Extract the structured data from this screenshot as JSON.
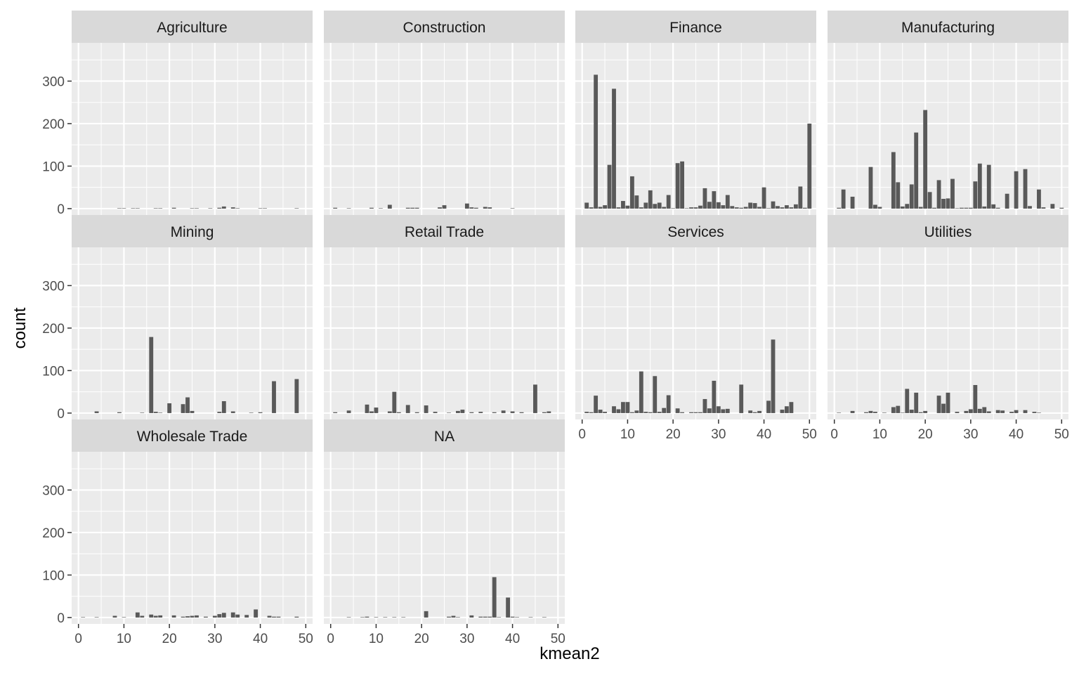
{
  "chart_data": {
    "type": "bar",
    "layout": "facet_wrap",
    "ncol": 4,
    "title": "",
    "xlabel": "kmean2",
    "ylabel": "count",
    "xlim": [
      -1.5,
      51.5
    ],
    "ylim": [
      -15,
      390
    ],
    "x_ticks": [
      0,
      10,
      20,
      30,
      40,
      50
    ],
    "y_ticks": [
      0,
      100,
      200,
      300
    ],
    "grid": true,
    "bar_color": "#595959",
    "panel_background": "#ebebeb",
    "strip_background": "#d9d9d9",
    "grid_color": "#ffffff",
    "axis_text_color": "#4d4d4d",
    "strip_text_color": "#1a1a1a",
    "panels": [
      {
        "name": "Agriculture",
        "points": [
          [
            9,
            1
          ],
          [
            10,
            1
          ],
          [
            12,
            1
          ],
          [
            13,
            1
          ],
          [
            17,
            1
          ],
          [
            18,
            1
          ],
          [
            21,
            2
          ],
          [
            25,
            1
          ],
          [
            26,
            1
          ],
          [
            29,
            1
          ],
          [
            31,
            2
          ],
          [
            32,
            5
          ],
          [
            34,
            3
          ],
          [
            35,
            1
          ],
          [
            40,
            1
          ],
          [
            41,
            1
          ],
          [
            48,
            1
          ]
        ]
      },
      {
        "name": "Construction",
        "points": [
          [
            1,
            2
          ],
          [
            4,
            1
          ],
          [
            9,
            2
          ],
          [
            11,
            1
          ],
          [
            13,
            9
          ],
          [
            17,
            2
          ],
          [
            18,
            2
          ],
          [
            19,
            2
          ],
          [
            24,
            3
          ],
          [
            25,
            8
          ],
          [
            30,
            12
          ],
          [
            31,
            3
          ],
          [
            32,
            2
          ],
          [
            34,
            4
          ],
          [
            35,
            3
          ],
          [
            40,
            1
          ]
        ]
      },
      {
        "name": "Finance",
        "points": [
          [
            1,
            14
          ],
          [
            2,
            3
          ],
          [
            3,
            315
          ],
          [
            4,
            4
          ],
          [
            5,
            8
          ],
          [
            6,
            103
          ],
          [
            7,
            282
          ],
          [
            8,
            3
          ],
          [
            9,
            18
          ],
          [
            10,
            7
          ],
          [
            11,
            76
          ],
          [
            12,
            31
          ],
          [
            13,
            3
          ],
          [
            14,
            14
          ],
          [
            15,
            43
          ],
          [
            16,
            11
          ],
          [
            17,
            14
          ],
          [
            18,
            4
          ],
          [
            19,
            32
          ],
          [
            20,
            1
          ],
          [
            21,
            107
          ],
          [
            22,
            111
          ],
          [
            23,
            1
          ],
          [
            24,
            3
          ],
          [
            25,
            3
          ],
          [
            26,
            7
          ],
          [
            27,
            48
          ],
          [
            28,
            16
          ],
          [
            29,
            41
          ],
          [
            30,
            15
          ],
          [
            31,
            8
          ],
          [
            32,
            32
          ],
          [
            33,
            6
          ],
          [
            34,
            3
          ],
          [
            35,
            2
          ],
          [
            36,
            4
          ],
          [
            37,
            14
          ],
          [
            38,
            13
          ],
          [
            39,
            4
          ],
          [
            40,
            50
          ],
          [
            41,
            1
          ],
          [
            42,
            17
          ],
          [
            43,
            6
          ],
          [
            44,
            3
          ],
          [
            45,
            8
          ],
          [
            46,
            3
          ],
          [
            47,
            10
          ],
          [
            48,
            52
          ],
          [
            49,
            2
          ],
          [
            50,
            200
          ]
        ]
      },
      {
        "name": "Manufacturing",
        "points": [
          [
            1,
            2
          ],
          [
            2,
            45
          ],
          [
            4,
            28
          ],
          [
            8,
            98
          ],
          [
            9,
            9
          ],
          [
            10,
            4
          ],
          [
            13,
            133
          ],
          [
            14,
            62
          ],
          [
            15,
            5
          ],
          [
            16,
            11
          ],
          [
            17,
            57
          ],
          [
            18,
            179
          ],
          [
            19,
            4
          ],
          [
            20,
            232
          ],
          [
            21,
            39
          ],
          [
            22,
            2
          ],
          [
            23,
            67
          ],
          [
            24,
            23
          ],
          [
            25,
            24
          ],
          [
            26,
            70
          ],
          [
            27,
            1
          ],
          [
            28,
            2
          ],
          [
            29,
            2
          ],
          [
            30,
            2
          ],
          [
            31,
            64
          ],
          [
            32,
            106
          ],
          [
            33,
            5
          ],
          [
            34,
            103
          ],
          [
            35,
            10
          ],
          [
            36,
            2
          ],
          [
            38,
            35
          ],
          [
            40,
            88
          ],
          [
            42,
            93
          ],
          [
            43,
            6
          ],
          [
            45,
            45
          ],
          [
            46,
            3
          ],
          [
            48,
            11
          ],
          [
            50,
            2
          ]
        ]
      },
      {
        "name": "Mining",
        "points": [
          [
            4,
            4
          ],
          [
            9,
            2
          ],
          [
            14,
            1
          ],
          [
            16,
            179
          ],
          [
            17,
            3
          ],
          [
            18,
            1
          ],
          [
            20,
            23
          ],
          [
            23,
            21
          ],
          [
            24,
            37
          ],
          [
            25,
            5
          ],
          [
            31,
            3
          ],
          [
            32,
            28
          ],
          [
            34,
            4
          ],
          [
            38,
            1
          ],
          [
            40,
            2
          ],
          [
            43,
            75
          ],
          [
            48,
            80
          ]
        ]
      },
      {
        "name": "Retail Trade",
        "points": [
          [
            1,
            2
          ],
          [
            4,
            6
          ],
          [
            8,
            20
          ],
          [
            9,
            4
          ],
          [
            10,
            13
          ],
          [
            13,
            4
          ],
          [
            14,
            50
          ],
          [
            15,
            2
          ],
          [
            17,
            19
          ],
          [
            19,
            2
          ],
          [
            21,
            18
          ],
          [
            23,
            3
          ],
          [
            26,
            1
          ],
          [
            28,
            5
          ],
          [
            29,
            8
          ],
          [
            31,
            2
          ],
          [
            33,
            3
          ],
          [
            36,
            2
          ],
          [
            38,
            6
          ],
          [
            40,
            4
          ],
          [
            42,
            2
          ],
          [
            45,
            67
          ],
          [
            47,
            2
          ],
          [
            48,
            4
          ]
        ]
      },
      {
        "name": "Services",
        "points": [
          [
            1,
            3
          ],
          [
            2,
            2
          ],
          [
            3,
            41
          ],
          [
            4,
            8
          ],
          [
            5,
            3
          ],
          [
            7,
            16
          ],
          [
            8,
            9
          ],
          [
            9,
            26
          ],
          [
            10,
            26
          ],
          [
            11,
            2
          ],
          [
            12,
            6
          ],
          [
            13,
            98
          ],
          [
            14,
            3
          ],
          [
            15,
            2
          ],
          [
            16,
            87
          ],
          [
            17,
            3
          ],
          [
            18,
            12
          ],
          [
            19,
            42
          ],
          [
            21,
            11
          ],
          [
            22,
            2
          ],
          [
            24,
            2
          ],
          [
            25,
            2
          ],
          [
            26,
            2
          ],
          [
            27,
            33
          ],
          [
            28,
            11
          ],
          [
            29,
            76
          ],
          [
            30,
            16
          ],
          [
            31,
            9
          ],
          [
            32,
            10
          ],
          [
            35,
            67
          ],
          [
            37,
            6
          ],
          [
            38,
            2
          ],
          [
            39,
            5
          ],
          [
            41,
            29
          ],
          [
            42,
            173
          ],
          [
            44,
            8
          ],
          [
            45,
            16
          ],
          [
            46,
            26
          ]
        ]
      },
      {
        "name": "Utilities",
        "points": [
          [
            1,
            1
          ],
          [
            4,
            5
          ],
          [
            7,
            2
          ],
          [
            8,
            5
          ],
          [
            9,
            3
          ],
          [
            11,
            1
          ],
          [
            13,
            14
          ],
          [
            14,
            17
          ],
          [
            15,
            1
          ],
          [
            16,
            57
          ],
          [
            17,
            8
          ],
          [
            18,
            48
          ],
          [
            19,
            2
          ],
          [
            20,
            5
          ],
          [
            23,
            41
          ],
          [
            24,
            22
          ],
          [
            25,
            48
          ],
          [
            27,
            3
          ],
          [
            29,
            5
          ],
          [
            30,
            9
          ],
          [
            31,
            66
          ],
          [
            32,
            10
          ],
          [
            33,
            14
          ],
          [
            34,
            4
          ],
          [
            36,
            7
          ],
          [
            37,
            6
          ],
          [
            39,
            3
          ],
          [
            40,
            7
          ],
          [
            42,
            7
          ],
          [
            44,
            3
          ],
          [
            45,
            1
          ]
        ]
      },
      {
        "name": "Wholesale Trade",
        "points": [
          [
            1,
            1
          ],
          [
            4,
            1
          ],
          [
            8,
            4
          ],
          [
            10,
            1
          ],
          [
            13,
            12
          ],
          [
            14,
            4
          ],
          [
            16,
            7
          ],
          [
            17,
            4
          ],
          [
            18,
            5
          ],
          [
            21,
            5
          ],
          [
            23,
            2
          ],
          [
            24,
            3
          ],
          [
            25,
            4
          ],
          [
            26,
            5
          ],
          [
            28,
            2
          ],
          [
            30,
            4
          ],
          [
            31,
            8
          ],
          [
            32,
            11
          ],
          [
            34,
            12
          ],
          [
            35,
            7
          ],
          [
            37,
            6
          ],
          [
            39,
            19
          ],
          [
            42,
            4
          ],
          [
            43,
            2
          ],
          [
            44,
            2
          ],
          [
            48,
            2
          ]
        ]
      },
      {
        "name": "NA",
        "points": [
          [
            4,
            1
          ],
          [
            7,
            1
          ],
          [
            8,
            2
          ],
          [
            10,
            1
          ],
          [
            12,
            1
          ],
          [
            14,
            1
          ],
          [
            16,
            1
          ],
          [
            21,
            15
          ],
          [
            26,
            2
          ],
          [
            27,
            4
          ],
          [
            28,
            1
          ],
          [
            31,
            5
          ],
          [
            33,
            2
          ],
          [
            34,
            2
          ],
          [
            35,
            2
          ],
          [
            36,
            95
          ],
          [
            37,
            1
          ],
          [
            39,
            47
          ],
          [
            40,
            2
          ],
          [
            41,
            1
          ],
          [
            44,
            1
          ],
          [
            47,
            1
          ]
        ]
      }
    ]
  }
}
